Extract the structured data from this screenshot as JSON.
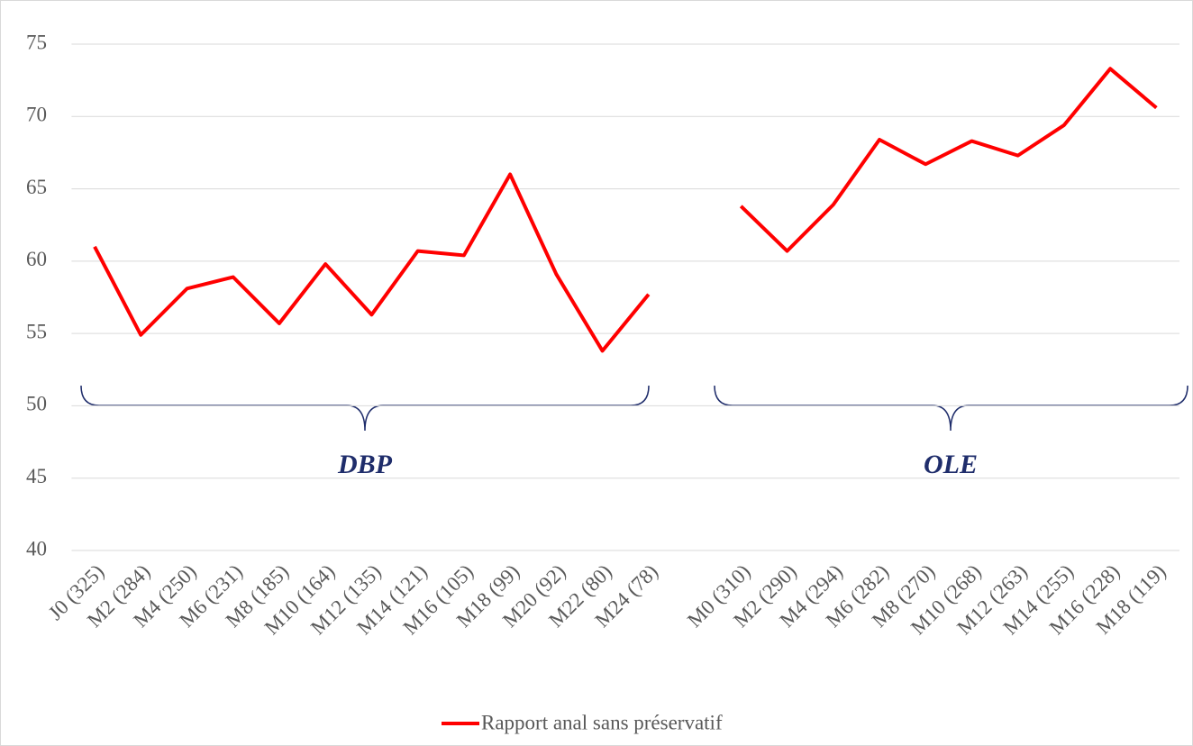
{
  "chart_data": {
    "type": "line",
    "categories": [
      "J0 (325)",
      "M2 (284)",
      "M4 (250)",
      "M6 (231)",
      "M8 (185)",
      "M10 (164)",
      "M12 (135)",
      "M14 (121)",
      "M16 (105)",
      "M18 (99)",
      "M20 (92)",
      "M22 (80)",
      "M24 (78)",
      null,
      "M0 (310)",
      "M2 (290)",
      "M4 (294)",
      "M6 (282)",
      "M8 (270)",
      "M10 (268)",
      "M12 (263)",
      "M14 (255)",
      "M16 (228)",
      "M18 (119)"
    ],
    "series": [
      {
        "name": "Rapport anal sans préservatif",
        "color": "#ff0000",
        "values": [
          61.0,
          54.9,
          58.1,
          58.9,
          55.7,
          59.8,
          56.3,
          60.7,
          60.4,
          66.0,
          59.1,
          53.8,
          57.7,
          null,
          63.8,
          60.7,
          63.9,
          68.4,
          66.7,
          68.3,
          67.3,
          69.4,
          73.3,
          70.6
        ]
      }
    ],
    "ylim": [
      40,
      75
    ],
    "yticks": [
      40,
      45,
      50,
      55,
      60,
      65,
      70,
      75
    ],
    "grid": true,
    "annotations": [
      "DBP",
      "OLE"
    ],
    "legend": "bottom"
  }
}
